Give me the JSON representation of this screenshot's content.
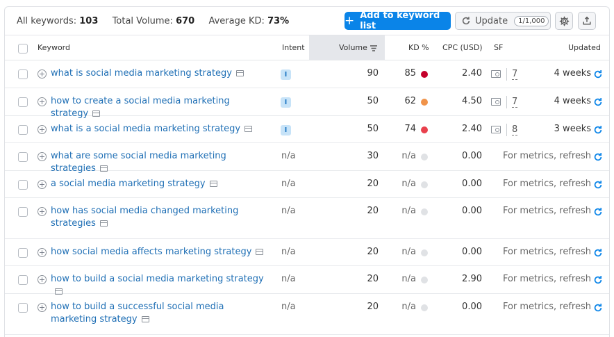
{
  "summary": {
    "all_keywords_label": "All keywords:",
    "all_keywords_value": "103",
    "total_volume_label": "Total Volume:",
    "total_volume_value": "670",
    "avg_kd_label": "Average KD:",
    "avg_kd_value": "73%"
  },
  "toolbar": {
    "add_label": "Add to keyword list",
    "update_label": "Update",
    "update_quota": "1/1,000",
    "gear_icon": "gear-icon",
    "export_icon": "export-icon"
  },
  "columns": {
    "keyword": "Keyword",
    "intent": "Intent",
    "volume": "Volume",
    "kd": "KD %",
    "cpc": "CPC (USD)",
    "sf": "SF",
    "updated": "Updated"
  },
  "colors": {
    "accent": "#0a84e8",
    "link": "#1f6fb5",
    "kd_very_hard": "#c4002b",
    "kd_difficult": "#f0934a",
    "kd_hard": "#e9414d",
    "kd_na": "#e0e2e5"
  },
  "rows": [
    {
      "keyword": "what is social media marketing strategy",
      "intent": "I",
      "volume": "90",
      "kd": "85",
      "kd_color": "#c4002b",
      "cpc": "2.40",
      "sf": "7",
      "updated": "4 weeks"
    },
    {
      "keyword": "how to create a social media marketing strategy",
      "intent": "I",
      "volume": "50",
      "kd": "62",
      "kd_color": "#f0934a",
      "cpc": "4.50",
      "sf": "7",
      "updated": "4 weeks"
    },
    {
      "keyword": "what is a social media marketing strategy",
      "intent": "I",
      "volume": "50",
      "kd": "74",
      "kd_color": "#e9414d",
      "cpc": "2.40",
      "sf": "8",
      "updated": "3 weeks"
    },
    {
      "keyword": "what are some social media marketing strategies",
      "intent": "n/a",
      "volume": "30",
      "kd": "n/a",
      "kd_color": "#e0e2e5",
      "cpc": "0.00",
      "sf": "",
      "updated": "For metrics, refresh"
    },
    {
      "keyword": "a social media marketing strategy",
      "intent": "n/a",
      "volume": "20",
      "kd": "n/a",
      "kd_color": "#e0e2e5",
      "cpc": "0.00",
      "sf": "",
      "updated": "For metrics, refresh"
    },
    {
      "keyword": "how has social media changed marketing strategies",
      "intent": "n/a",
      "volume": "20",
      "kd": "n/a",
      "kd_color": "#e0e2e5",
      "cpc": "0.00",
      "sf": "",
      "updated": "For metrics, refresh"
    },
    {
      "keyword": "how social media affects marketing strategy",
      "intent": "n/a",
      "volume": "20",
      "kd": "n/a",
      "kd_color": "#e0e2e5",
      "cpc": "0.00",
      "sf": "",
      "updated": "For metrics, refresh"
    },
    {
      "keyword": "how to build a social media marketing strategy",
      "intent": "n/a",
      "volume": "20",
      "kd": "n/a",
      "kd_color": "#e0e2e5",
      "cpc": "2.90",
      "sf": "",
      "updated": "For metrics, refresh"
    },
    {
      "keyword": "how to build a successful social media marketing strategy",
      "intent": "n/a",
      "volume": "20",
      "kd": "n/a",
      "kd_color": "#e0e2e5",
      "cpc": "0.00",
      "sf": "",
      "updated": "For metrics, refresh"
    }
  ]
}
